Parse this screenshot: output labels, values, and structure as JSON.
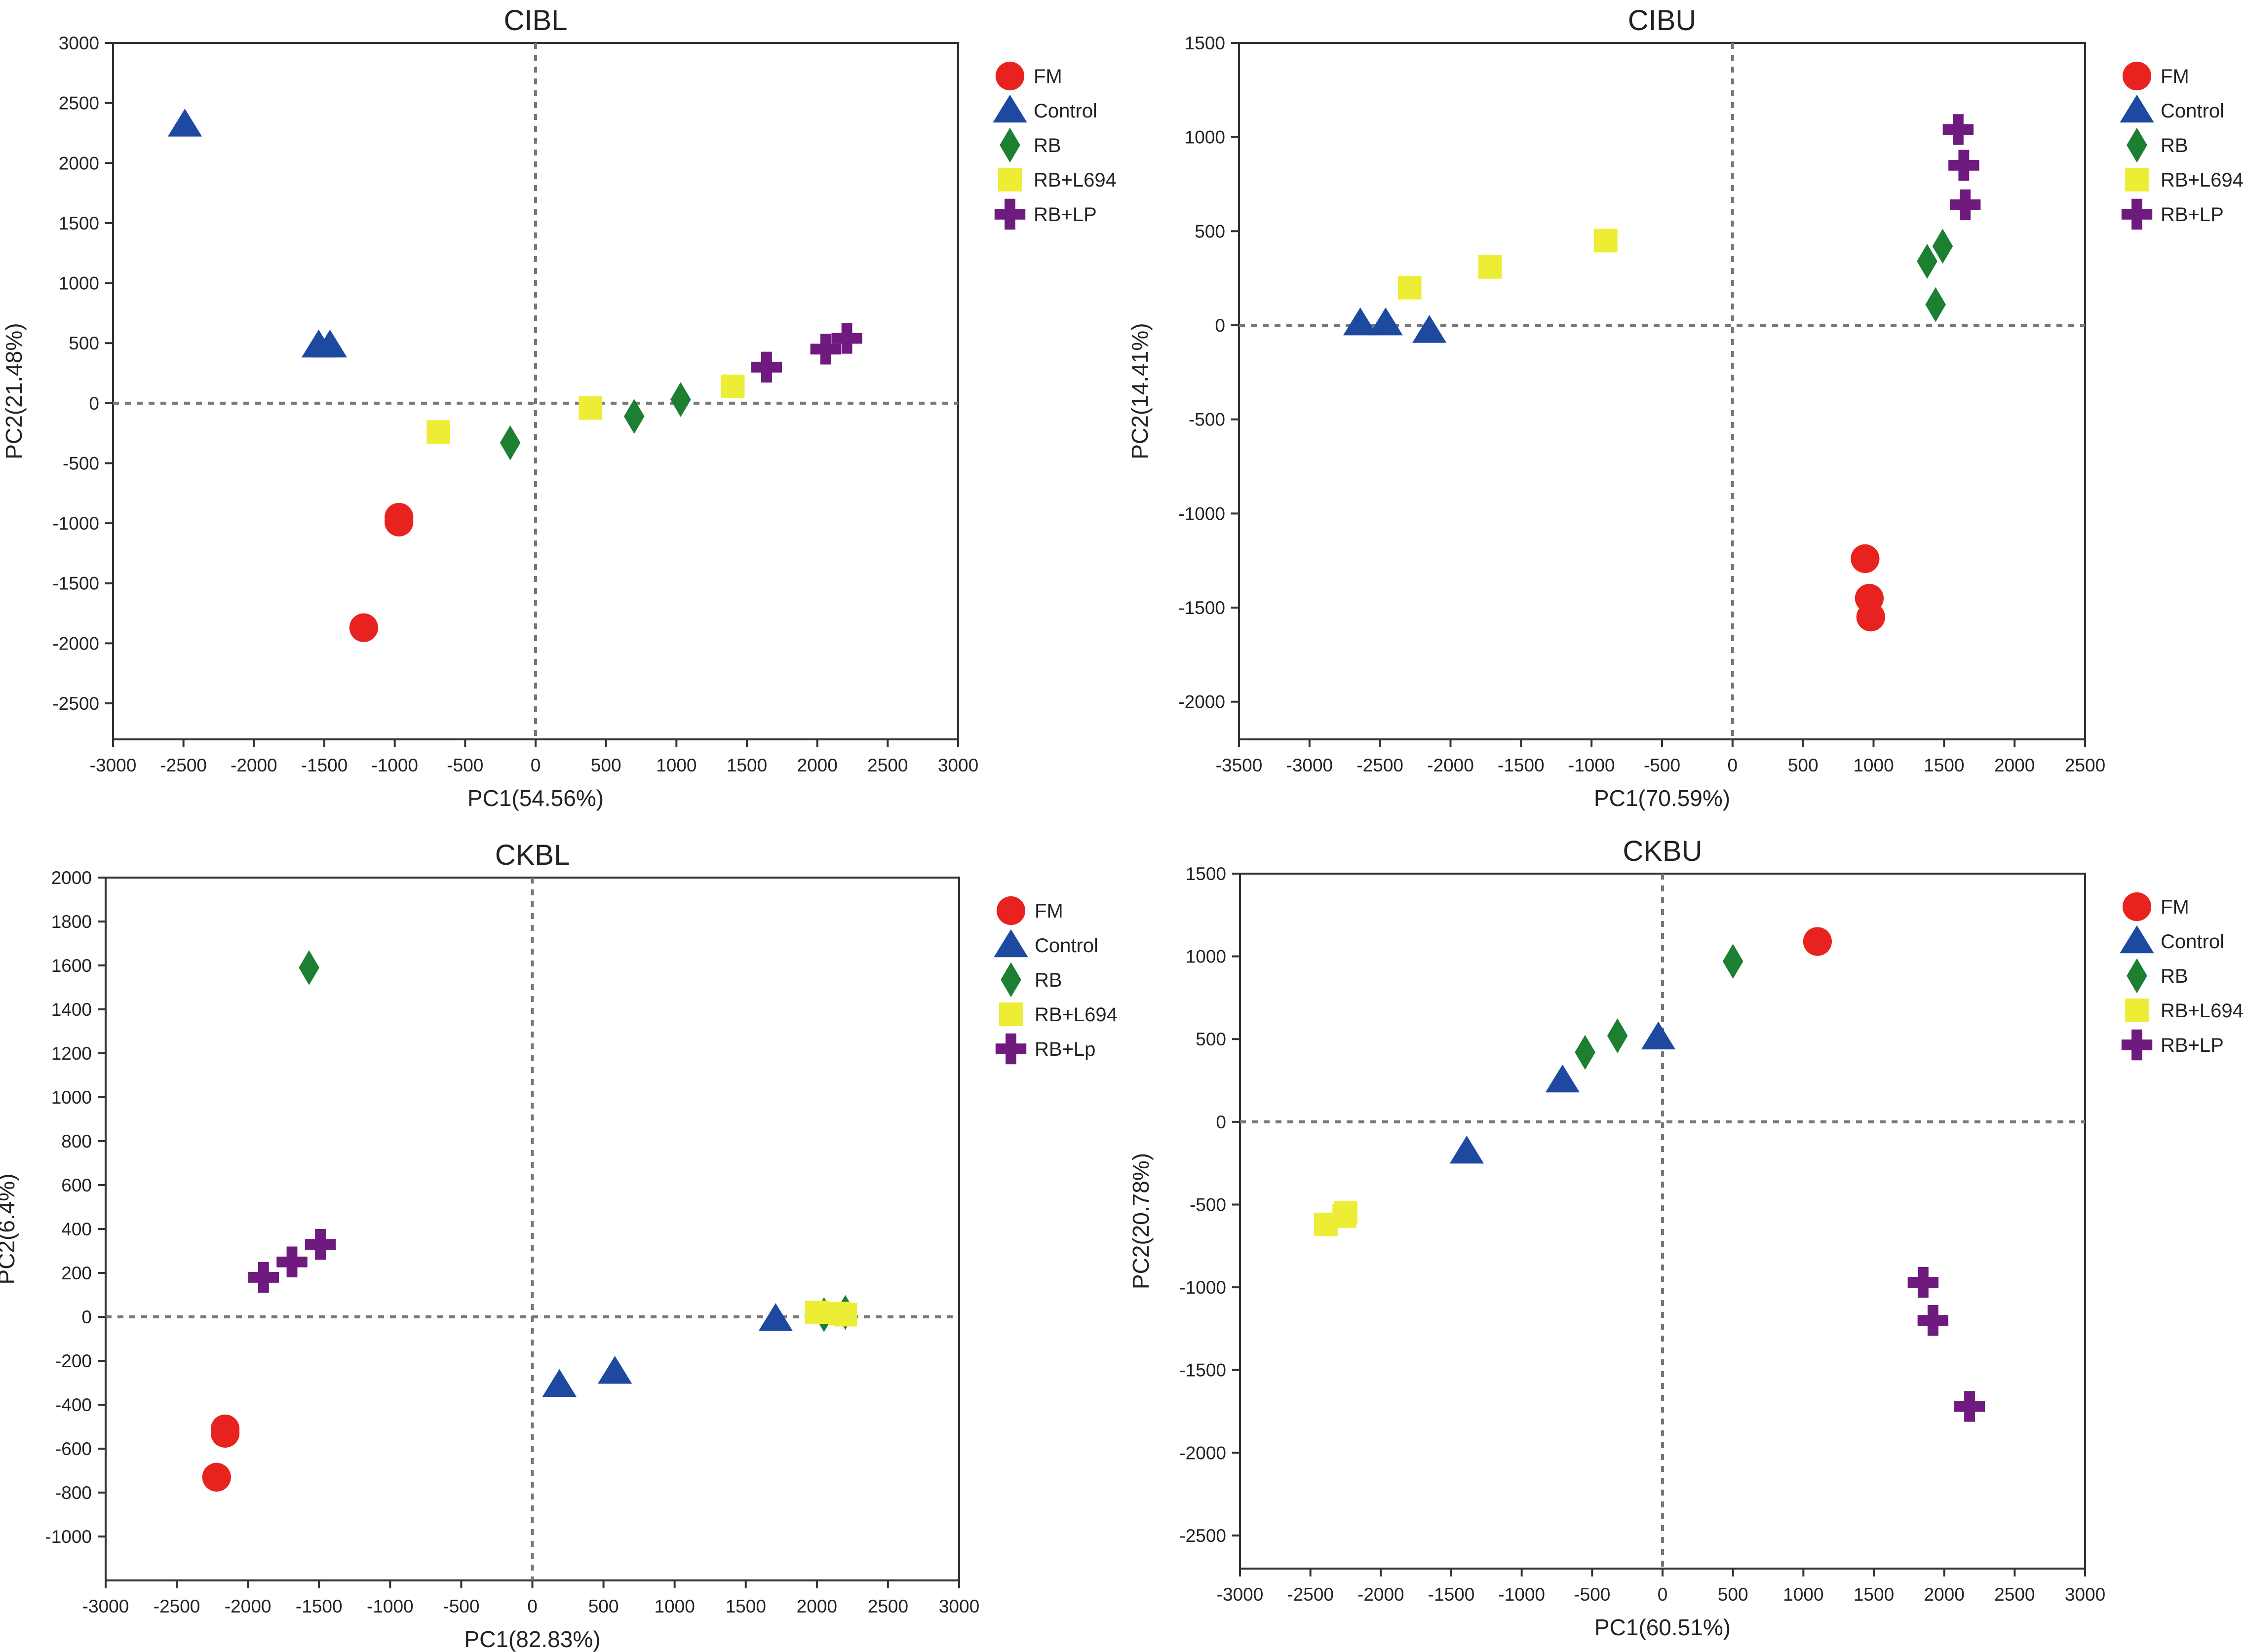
{
  "chart_data": [
    {
      "type": "scatter",
      "title": "CIBL",
      "xlabel": "PC1(54.56%)",
      "ylabel": "PC2(21.48%)",
      "xlim": [
        -3000,
        3000
      ],
      "ylim": [
        -2800,
        3000
      ],
      "xticks": [
        -3000,
        -2500,
        -2000,
        -1500,
        -1000,
        -500,
        0,
        500,
        1000,
        1500,
        2000,
        2500,
        3000
      ],
      "yticks": [
        -2500,
        -2000,
        -1500,
        -1000,
        -500,
        0,
        500,
        1000,
        1500,
        2000,
        2500,
        3000
      ],
      "legend_position": "right",
      "series": [
        {
          "name": "FM",
          "marker": "circle",
          "color": "#e8231f",
          "points": [
            [
              -970,
              -950
            ],
            [
              -970,
              -990
            ],
            [
              -1220,
              -1870
            ]
          ]
        },
        {
          "name": "Control",
          "marker": "triangle",
          "color": "#1d4aa0",
          "points": [
            [
              -2490,
              2320
            ],
            [
              -1540,
              480
            ],
            [
              -1460,
              480
            ]
          ]
        },
        {
          "name": "RB",
          "marker": "diamond",
          "color": "#1c7f32",
          "points": [
            [
              -180,
              -330
            ],
            [
              700,
              -110
            ],
            [
              1030,
              30
            ]
          ]
        },
        {
          "name": "RB+L694",
          "marker": "square",
          "color": "#eded36",
          "points": [
            [
              -690,
              -240
            ],
            [
              390,
              -40
            ],
            [
              1400,
              140
            ]
          ]
        },
        {
          "name": "RB+LP",
          "marker": "cross",
          "color": "#6e1a7e",
          "points": [
            [
              1640,
              300
            ],
            [
              2060,
              450
            ],
            [
              2210,
              540
            ]
          ]
        }
      ]
    },
    {
      "type": "scatter",
      "title": "CIBU",
      "xlabel": "PC1(70.59%)",
      "ylabel": "PC2(14.41%)",
      "xlim": [
        -3500,
        2500
      ],
      "ylim": [
        -2200,
        1500
      ],
      "xticks": [
        -3500,
        -3000,
        -2500,
        -2000,
        -1500,
        -1000,
        -500,
        0,
        500,
        1000,
        1500,
        2000,
        2500
      ],
      "yticks": [
        -2000,
        -1500,
        -1000,
        -500,
        0,
        500,
        1000,
        1500
      ],
      "legend_position": "right",
      "series": [
        {
          "name": "FM",
          "marker": "circle",
          "color": "#e8231f",
          "points": [
            [
              940,
              -1240
            ],
            [
              970,
              -1450
            ],
            [
              980,
              -1550
            ]
          ]
        },
        {
          "name": "Control",
          "marker": "triangle",
          "color": "#1d4aa0",
          "points": [
            [
              -2640,
              10
            ],
            [
              -2460,
              10
            ],
            [
              -2150,
              -30
            ]
          ]
        },
        {
          "name": "RB",
          "marker": "diamond",
          "color": "#1c7f32",
          "points": [
            [
              1380,
              340
            ],
            [
              1490,
              420
            ],
            [
              1440,
              110
            ]
          ]
        },
        {
          "name": "RB+L694",
          "marker": "square",
          "color": "#eded36",
          "points": [
            [
              -2290,
              200
            ],
            [
              -1720,
              310
            ],
            [
              -900,
              450
            ]
          ]
        },
        {
          "name": "RB+LP",
          "marker": "cross",
          "color": "#6e1a7e",
          "points": [
            [
              1600,
              1040
            ],
            [
              1640,
              850
            ],
            [
              1650,
              640
            ]
          ]
        }
      ]
    },
    {
      "type": "scatter",
      "title": "CKBL",
      "xlabel": "PC1(82.83%)",
      "ylabel": "PC2(6.4%)",
      "xlim": [
        -3000,
        3000
      ],
      "ylim": [
        -1200,
        2000
      ],
      "xticks": [
        -3000,
        -2500,
        -2000,
        -1500,
        -1000,
        -500,
        0,
        500,
        1000,
        1500,
        2000,
        2500,
        3000
      ],
      "yticks": [
        -1000,
        -800,
        -600,
        -400,
        -200,
        0,
        200,
        400,
        600,
        800,
        1000,
        1200,
        1400,
        1600,
        1800,
        2000
      ],
      "legend_position": "right",
      "series": [
        {
          "name": "FM",
          "marker": "circle",
          "color": "#e8231f",
          "points": [
            [
              -2160,
              -510
            ],
            [
              -2160,
              -530
            ],
            [
              -2220,
              -730
            ]
          ]
        },
        {
          "name": "Control",
          "marker": "triangle",
          "color": "#1d4aa0",
          "points": [
            [
              190,
              -310
            ],
            [
              580,
              -250
            ],
            [
              1710,
              -10
            ]
          ]
        },
        {
          "name": "RB",
          "marker": "diamond",
          "color": "#1c7f32",
          "points": [
            [
              -1570,
              1590
            ],
            [
              2050,
              10
            ],
            [
              2200,
              20
            ]
          ]
        },
        {
          "name": "RB+L694",
          "marker": "square",
          "color": "#eded36",
          "points": [
            [
              2000,
              20
            ],
            [
              2200,
              10
            ],
            [
              2160,
              15
            ]
          ]
        },
        {
          "name": "RB+Lp",
          "marker": "cross",
          "color": "#6e1a7e",
          "points": [
            [
              -1890,
              180
            ],
            [
              -1690,
              250
            ],
            [
              -1490,
              330
            ]
          ]
        }
      ]
    },
    {
      "type": "scatter",
      "title": "CKBU",
      "xlabel": "PC1(60.51%)",
      "ylabel": "PC2(20.78%)",
      "xlim": [
        -3000,
        3000
      ],
      "ylim": [
        -2700,
        1500
      ],
      "xticks": [
        -3000,
        -2500,
        -2000,
        -1500,
        -1000,
        -500,
        0,
        500,
        1000,
        1500,
        2000,
        2500,
        3000
      ],
      "yticks": [
        -2500,
        -2000,
        -1500,
        -1000,
        -500,
        0,
        500,
        1000,
        1500
      ],
      "legend_position": "right",
      "series": [
        {
          "name": "FM",
          "marker": "circle",
          "color": "#e8231f",
          "points": [
            [
              1100,
              1090
            ]
          ]
        },
        {
          "name": "Control",
          "marker": "triangle",
          "color": "#1d4aa0",
          "points": [
            [
              -1390,
              -180
            ],
            [
              -710,
              250
            ],
            [
              -30,
              510
            ]
          ]
        },
        {
          "name": "RB",
          "marker": "diamond",
          "color": "#1c7f32",
          "points": [
            [
              -550,
              420
            ],
            [
              -320,
              520
            ],
            [
              500,
              970
            ]
          ]
        },
        {
          "name": "RB+L694",
          "marker": "square",
          "color": "#eded36",
          "points": [
            [
              -2390,
              -620
            ],
            [
              -2260,
              -570
            ],
            [
              -2250,
              -550
            ]
          ]
        },
        {
          "name": "RB+LP",
          "marker": "cross",
          "color": "#6e1a7e",
          "points": [
            [
              1850,
              -970
            ],
            [
              1920,
              -1200
            ],
            [
              2180,
              -1720
            ]
          ]
        }
      ]
    }
  ]
}
